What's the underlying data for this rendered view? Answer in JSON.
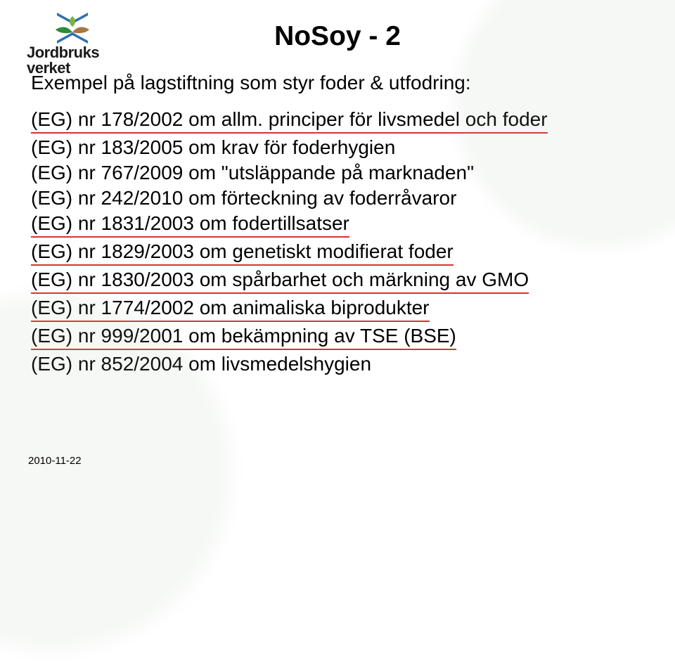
{
  "background_color": "#ffffff",
  "watermark_color": "#9fb89a",
  "logo": {
    "name_line1": "Jordbruks",
    "name_line2": "verket",
    "colors": {
      "leaf_green": "#7fb23f",
      "field_green": "#2e8b3d",
      "field_brown": "#a67843",
      "sky_blue": "#2f6fb0"
    }
  },
  "title": {
    "text": "NoSoy - 2",
    "fontsize": 39,
    "fontweight": 700,
    "color": "#000000"
  },
  "subtitle": {
    "text": "Exempel på lagstiftning som styr foder & utfodring:",
    "fontsize": 28,
    "color": "#000000"
  },
  "items_fontsize": 28,
  "underline_color": "#d63333",
  "items": [
    {
      "text": "(EG) nr 178/2002  om allm. principer för livsmedel och foder",
      "underlined": true
    },
    {
      "text": "(EG) nr 183/2005 om krav för foderhygien",
      "underlined": false
    },
    {
      "text": "(EG) nr 767/2009 om \"utsläppande på marknaden\"",
      "underlined": false
    },
    {
      "text": "(EG) nr 242/2010 om förteckning av foderråvaror",
      "underlined": false
    },
    {
      "text": "(EG) nr 1831/2003 om fodertillsatser",
      "underlined": true
    },
    {
      "text": "(EG) nr 1829/2003 om genetiskt modifierat foder",
      "underlined": true
    },
    {
      "text": "(EG) nr 1830/2003 om spårbarhet och märkning av GMO",
      "underlined": true
    },
    {
      "text": "(EG) nr 1774/2002 om animaliska biprodukter",
      "underlined": true
    },
    {
      "text": "(EG) nr 999/2001 om bekämpning av TSE (BSE)",
      "underlined": true
    },
    {
      "text": "(EG) nr 852/2004 om livsmedelshygien",
      "underlined": false
    }
  ],
  "footer_date": "2010-11-22"
}
